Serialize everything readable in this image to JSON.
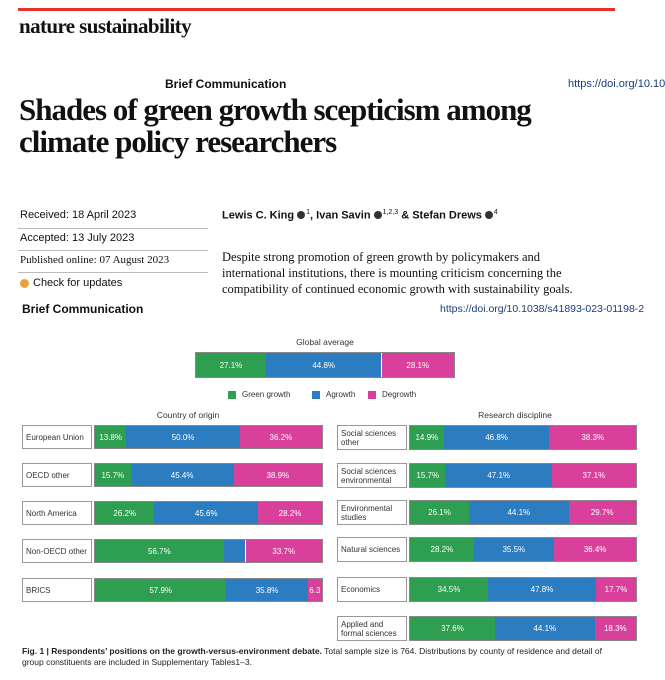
{
  "header": {
    "journal": "nature sustainability",
    "section": "Brief Communication",
    "doi": "https://doi.org/10.10"
  },
  "article": {
    "title_lines": [
      "Shades of green growth scepticism among",
      "climate policy researchers"
    ],
    "received": "Received: 18 April 2023",
    "accepted": "Accepted: 13 July 2023",
    "published": "Published online: 07 August 2023",
    "check": "Check for updates",
    "authors": [
      {
        "name": "Lewis C. King",
        "sup": "1"
      },
      {
        "name": "Ivan Savin",
        "sup": "1,2,3"
      },
      {
        "name": "& Stefan Drews",
        "sup": "4"
      }
    ],
    "abstract_lines": [
      "Despite strong promotion of green growth by policymakers and",
      "international institutions, there is mounting criticism concerning the",
      "compatibility of continued economic growth with sustainability goals."
    ]
  },
  "figure_header": {
    "section": "Brief Communication",
    "doi": "https://doi.org/10.1038/s41893-023-01198-2"
  },
  "chart_data": [
    {
      "type": "bar",
      "orientation": "horizontal",
      "stacked": true,
      "legend": true,
      "title": "Global average",
      "xlim": [
        0,
        100
      ],
      "categories": [
        null
      ],
      "series": [
        {
          "name": "Green growth",
          "color": "#2e9e50",
          "values": [
            27.1
          ],
          "value_labels": [
            "27.1%"
          ]
        },
        {
          "name": "Agrowth",
          "color": "#2b7cc0",
          "values": [
            44.8
          ],
          "value_labels": [
            "44.8%"
          ]
        },
        {
          "name": "Degrowth",
          "color": "#d9409b",
          "values": [
            28.1
          ],
          "value_labels": [
            "28.1%"
          ]
        }
      ]
    },
    {
      "type": "bar",
      "orientation": "horizontal",
      "stacked": true,
      "legend": false,
      "title": "Country of origin",
      "xlim": [
        0,
        100
      ],
      "categories": [
        "European Union",
        "OECD other",
        "North America",
        "Non-OECD other",
        "BRICS"
      ],
      "series": [
        {
          "name": "Green growth",
          "color": "#2e9e50",
          "values": [
            13.8,
            15.7,
            26.2,
            56.7,
            57.9
          ],
          "value_labels": [
            "13.8%",
            "15.7%",
            "26.2%",
            "56.7%",
            "57.9%"
          ]
        },
        {
          "name": "Agrowth",
          "color": "#2b7cc0",
          "values": [
            50.0,
            45.4,
            45.6,
            9.6,
            35.8
          ],
          "value_labels": [
            "50.0%",
            "45.4%",
            "45.6%",
            null,
            "35.8%"
          ]
        },
        {
          "name": "Degrowth",
          "color": "#d9409b",
          "values": [
            36.2,
            38.9,
            28.2,
            33.7,
            6.3
          ],
          "value_labels": [
            "36.2%",
            "38.9%",
            "28.2%",
            "33.7%",
            "6.3"
          ]
        }
      ]
    },
    {
      "type": "bar",
      "orientation": "horizontal",
      "stacked": true,
      "legend": false,
      "title": "Research discipline",
      "xlim": [
        0,
        100
      ],
      "categories": [
        "Social sciences other",
        "Social sciences environmental",
        "Environmental studies",
        "Natural sciences",
        "Economics",
        "Applied and formal sciences"
      ],
      "series": [
        {
          "name": "Green growth",
          "color": "#2e9e50",
          "values": [
            14.9,
            15.7,
            26.1,
            28.2,
            34.5,
            37.6
          ],
          "value_labels": [
            "14.9%",
            "15.7%",
            "26.1%",
            "28.2%",
            "34.5%",
            "37.6%"
          ]
        },
        {
          "name": "Agrowth",
          "color": "#2b7cc0",
          "values": [
            46.8,
            47.1,
            44.1,
            35.5,
            47.8,
            44.1
          ],
          "value_labels": [
            "46.8%",
            "47.1%",
            "44.1%",
            "35.5%",
            "47.8%",
            "44.1%"
          ]
        },
        {
          "name": "Degrowth",
          "color": "#d9409b",
          "values": [
            38.3,
            37.1,
            29.7,
            36.4,
            17.7,
            18.3
          ],
          "value_labels": [
            "38.3%",
            "37.1%",
            "29.7%",
            "36.4%",
            "17.7%",
            "18.3%"
          ]
        }
      ]
    }
  ],
  "caption": {
    "label": "Fig. 1 | Respondents’ positions on the growth-versus-environment debate.",
    "text": "Total sample size is 764. Distributions by county of residence and detail of group constituents are included in Supplementary Tables1–3."
  }
}
